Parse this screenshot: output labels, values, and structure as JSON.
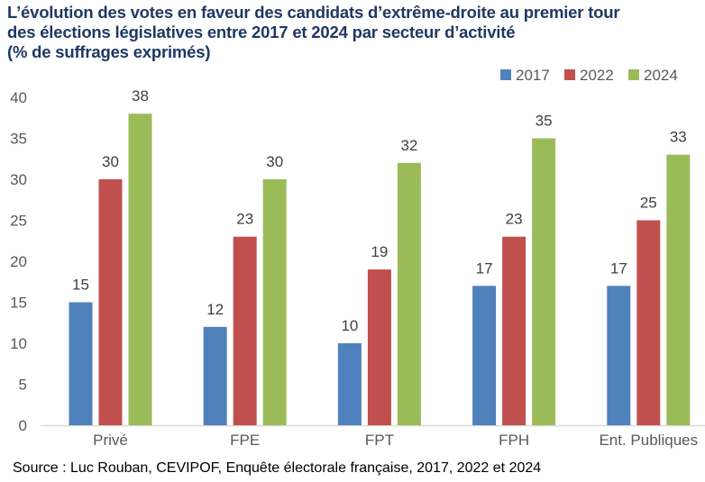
{
  "title_lines": [
    "L’évolution des votes en faveur des candidats d’extrême-droite au premier tour",
    "des élections législatives entre 2017 et 2024 par secteur d’activité",
    "(% de suffrages exprimés)"
  ],
  "source": "Source : Luc Rouban, CEVIPOF, Enquête électorale française, 2017, 2022 et 2024",
  "chart_data": {
    "type": "bar",
    "title": "L’évolution des votes en faveur des candidats d’extrême-droite au premier tour des élections législatives entre 2017 et 2024 par secteur d’activité (% de suffrages exprimés)",
    "xlabel": "",
    "ylabel": "",
    "categories": [
      "Privé",
      "FPE",
      "FPT",
      "FPH",
      "Ent. Publiques"
    ],
    "series": [
      {
        "name": "2017",
        "color": "#4f81bd",
        "values": [
          15,
          12,
          10,
          17,
          17
        ]
      },
      {
        "name": "2022",
        "color": "#c0504d",
        "values": [
          30,
          23,
          19,
          23,
          25
        ]
      },
      {
        "name": "2024",
        "color": "#9bbb59",
        "values": [
          38,
          30,
          32,
          35,
          33
        ]
      }
    ],
    "ylim": [
      0,
      40
    ],
    "yticks": [
      0,
      5,
      10,
      15,
      20,
      25,
      30,
      35,
      40
    ],
    "grid": false,
    "data_labels": true,
    "legend": {
      "position": "top-right",
      "entries": [
        "2017",
        "2022",
        "2024"
      ]
    }
  }
}
